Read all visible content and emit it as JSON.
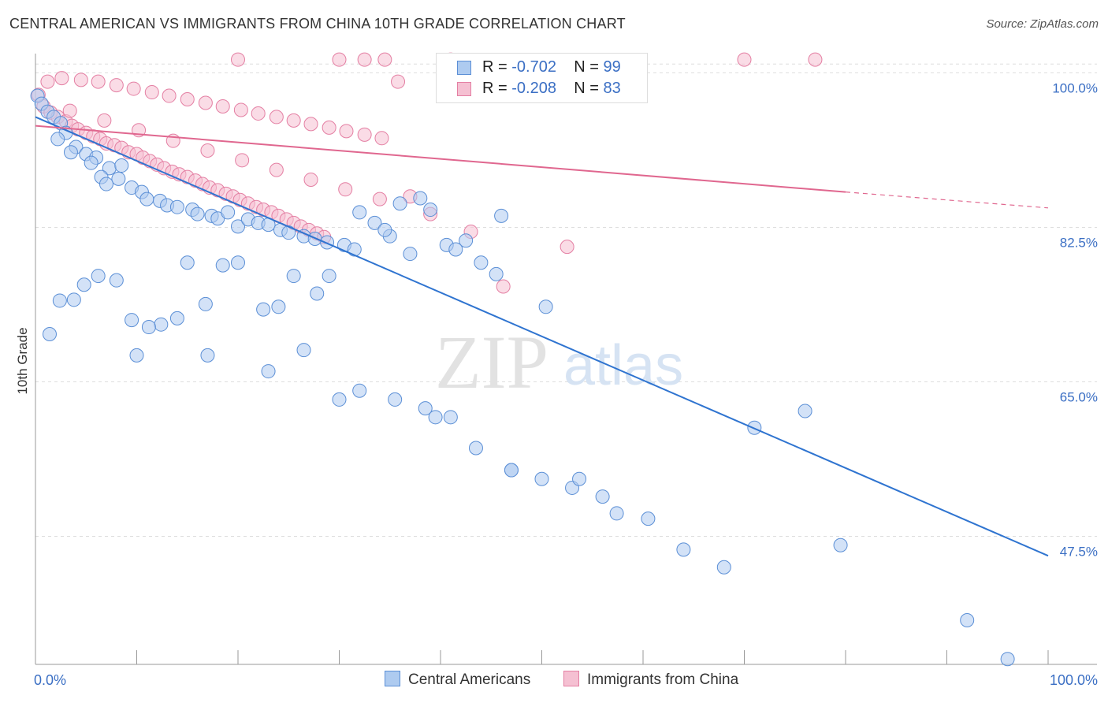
{
  "title": "CENTRAL AMERICAN VS IMMIGRANTS FROM CHINA 10TH GRADE CORRELATION CHART",
  "source": "Source: ZipAtlas.com",
  "watermark": {
    "zip": "ZIP",
    "atlas": "atlas"
  },
  "legend_stats": {
    "rows": [
      {
        "r_label": "R =",
        "r_value": "-0.702",
        "n_label": "N =",
        "n_value": "99"
      },
      {
        "r_label": "R =",
        "r_value": "-0.208",
        "n_label": "N =",
        "n_value": "83"
      }
    ]
  },
  "colors": {
    "blue_fill": "#aecbf0",
    "blue_stroke": "#5b8fd6",
    "blue_line": "#2f74d0",
    "pink_fill": "#f5c0d2",
    "pink_stroke": "#e47fa3",
    "pink_line": "#e0678f",
    "grid": "#dddddd",
    "axis_text": "#3b6fc4"
  },
  "chart_data": {
    "type": "scatter",
    "title": "CENTRAL AMERICAN VS IMMIGRANTS FROM CHINA 10TH GRADE CORRELATION CHART",
    "xlabel": "",
    "ylabel": "10th Grade",
    "xlim": [
      0,
      100
    ],
    "ylim": [
      33,
      102
    ],
    "x_tick_labels": [
      "0.0%",
      "100.0%"
    ],
    "y_ticks": [
      100.0,
      82.5,
      65.0,
      47.5
    ],
    "y_tick_labels": [
      "100.0%",
      "82.5%",
      "65.0%",
      "47.5%"
    ],
    "legend": [
      "Central Americans",
      "Immigrants from China"
    ],
    "series": [
      {
        "name": "Central Americans",
        "trend": {
          "x": [
            0,
            100
          ],
          "y": [
            95.0,
            45.3
          ]
        },
        "points": [
          [
            0.2,
            97.4
          ],
          [
            0.6,
            96.5
          ],
          [
            1.2,
            95.6
          ],
          [
            1.8,
            95.0
          ],
          [
            2.5,
            94.3
          ],
          [
            3.0,
            93.2
          ],
          [
            2.2,
            92.5
          ],
          [
            4.0,
            91.6
          ],
          [
            3.5,
            91.0
          ],
          [
            5.0,
            90.8
          ],
          [
            6.0,
            90.4
          ],
          [
            5.5,
            89.8
          ],
          [
            7.3,
            89.2
          ],
          [
            8.5,
            89.5
          ],
          [
            8.2,
            88.0
          ],
          [
            6.5,
            88.2
          ],
          [
            7.0,
            87.4
          ],
          [
            9.5,
            87.0
          ],
          [
            10.5,
            86.5
          ],
          [
            11.0,
            85.7
          ],
          [
            12.3,
            85.5
          ],
          [
            13.0,
            85.0
          ],
          [
            14.0,
            84.8
          ],
          [
            15.5,
            84.5
          ],
          [
            16.0,
            84.0
          ],
          [
            17.4,
            83.8
          ],
          [
            18.0,
            83.5
          ],
          [
            19.0,
            84.2
          ],
          [
            20.0,
            82.6
          ],
          [
            21.0,
            83.4
          ],
          [
            22.0,
            83.0
          ],
          [
            23.0,
            82.8
          ],
          [
            24.2,
            82.2
          ],
          [
            25.0,
            81.9
          ],
          [
            26.5,
            81.5
          ],
          [
            27.6,
            81.2
          ],
          [
            28.8,
            80.8
          ],
          [
            30.5,
            80.5
          ],
          [
            32.0,
            84.2
          ],
          [
            33.5,
            83.0
          ],
          [
            35.0,
            81.5
          ],
          [
            36.0,
            85.2
          ],
          [
            38.0,
            85.8
          ],
          [
            39.0,
            84.5
          ],
          [
            40.6,
            80.5
          ],
          [
            42.5,
            81.0
          ],
          [
            44.0,
            78.5
          ],
          [
            45.5,
            77.2
          ],
          [
            46.0,
            83.8
          ],
          [
            41.5,
            80.0
          ],
          [
            37.0,
            79.5
          ],
          [
            34.5,
            82.2
          ],
          [
            31.5,
            80.0
          ],
          [
            29.0,
            77.0
          ],
          [
            27.8,
            75.0
          ],
          [
            25.5,
            77.0
          ],
          [
            24.0,
            73.5
          ],
          [
            22.5,
            73.2
          ],
          [
            20.0,
            78.5
          ],
          [
            18.5,
            78.2
          ],
          [
            15.0,
            78.5
          ],
          [
            16.8,
            73.8
          ],
          [
            14.0,
            72.2
          ],
          [
            12.4,
            71.5
          ],
          [
            11.2,
            71.2
          ],
          [
            9.5,
            72.0
          ],
          [
            8.0,
            76.5
          ],
          [
            6.2,
            77.0
          ],
          [
            4.8,
            76.0
          ],
          [
            3.8,
            74.3
          ],
          [
            2.4,
            74.2
          ],
          [
            1.4,
            70.4
          ],
          [
            10.0,
            68.0
          ],
          [
            17.0,
            68.0
          ],
          [
            23.0,
            66.2
          ],
          [
            26.5,
            68.6
          ],
          [
            30.0,
            63.0
          ],
          [
            32.0,
            64.0
          ],
          [
            35.5,
            63.0
          ],
          [
            38.5,
            62.0
          ],
          [
            39.5,
            61.0
          ],
          [
            41.0,
            61.0
          ],
          [
            43.5,
            57.5
          ],
          [
            47.0,
            55.0
          ],
          [
            50.0,
            54.0
          ],
          [
            53.0,
            53.0
          ],
          [
            56.0,
            52.0
          ],
          [
            60.5,
            49.5
          ],
          [
            64.0,
            46.0
          ],
          [
            68.0,
            44.0
          ],
          [
            71.0,
            59.8
          ],
          [
            76.0,
            61.7
          ],
          [
            50.4,
            73.5
          ],
          [
            53.7,
            54.0
          ],
          [
            57.4,
            50.1
          ],
          [
            47.0,
            55.0
          ],
          [
            79.5,
            46.5
          ],
          [
            92.0,
            38.0
          ],
          [
            96.0,
            33.6
          ]
        ]
      },
      {
        "name": "Immigrants from China",
        "trend": {
          "x": [
            0,
            80
          ],
          "y": [
            94.0,
            86.5
          ],
          "dashed_to": [
            100,
            84.7
          ]
        },
        "points": [
          [
            0.3,
            97.5
          ],
          [
            0.8,
            96.2
          ],
          [
            1.5,
            95.5
          ],
          [
            2.2,
            95.0
          ],
          [
            3.0,
            94.5
          ],
          [
            3.6,
            94.0
          ],
          [
            4.2,
            93.6
          ],
          [
            5.0,
            93.2
          ],
          [
            5.7,
            92.8
          ],
          [
            6.4,
            92.5
          ],
          [
            7.0,
            92.0
          ],
          [
            7.8,
            91.8
          ],
          [
            8.5,
            91.5
          ],
          [
            9.2,
            91.0
          ],
          [
            10.0,
            90.8
          ],
          [
            10.6,
            90.4
          ],
          [
            11.3,
            90.0
          ],
          [
            12.0,
            89.6
          ],
          [
            12.7,
            89.2
          ],
          [
            13.5,
            88.8
          ],
          [
            14.2,
            88.5
          ],
          [
            15.0,
            88.2
          ],
          [
            15.8,
            87.8
          ],
          [
            16.5,
            87.4
          ],
          [
            17.2,
            87.0
          ],
          [
            18.0,
            86.7
          ],
          [
            18.8,
            86.3
          ],
          [
            19.5,
            86.0
          ],
          [
            20.2,
            85.6
          ],
          [
            21.0,
            85.2
          ],
          [
            21.8,
            84.8
          ],
          [
            22.5,
            84.5
          ],
          [
            23.3,
            84.2
          ],
          [
            24.0,
            83.8
          ],
          [
            24.8,
            83.4
          ],
          [
            25.5,
            83.0
          ],
          [
            26.2,
            82.6
          ],
          [
            27.0,
            82.2
          ],
          [
            27.8,
            81.8
          ],
          [
            28.5,
            81.4
          ],
          [
            1.2,
            99.0
          ],
          [
            2.6,
            99.4
          ],
          [
            4.5,
            99.2
          ],
          [
            6.2,
            99.0
          ],
          [
            8.0,
            98.6
          ],
          [
            9.7,
            98.2
          ],
          [
            11.5,
            97.8
          ],
          [
            13.2,
            97.4
          ],
          [
            15.0,
            97.0
          ],
          [
            16.8,
            96.6
          ],
          [
            18.5,
            96.2
          ],
          [
            20.3,
            95.8
          ],
          [
            22.0,
            95.4
          ],
          [
            23.8,
            95.0
          ],
          [
            25.5,
            94.6
          ],
          [
            27.2,
            94.2
          ],
          [
            29.0,
            93.8
          ],
          [
            30.7,
            93.4
          ],
          [
            32.5,
            93.0
          ],
          [
            34.2,
            92.6
          ],
          [
            3.4,
            95.7
          ],
          [
            6.8,
            94.6
          ],
          [
            10.2,
            93.5
          ],
          [
            13.6,
            92.3
          ],
          [
            17.0,
            91.2
          ],
          [
            20.4,
            90.1
          ],
          [
            23.8,
            89.0
          ],
          [
            27.2,
            87.9
          ],
          [
            30.6,
            86.8
          ],
          [
            34.0,
            85.7
          ],
          [
            20.0,
            101.5
          ],
          [
            30.0,
            101.5
          ],
          [
            32.5,
            101.5
          ],
          [
            34.5,
            101.5
          ],
          [
            35.8,
            99.0
          ],
          [
            41.0,
            101.5
          ],
          [
            70.0,
            101.5
          ],
          [
            77.0,
            101.5
          ],
          [
            37.0,
            86.0
          ],
          [
            39.0,
            84.0
          ],
          [
            43.0,
            82.0
          ],
          [
            46.2,
            75.8
          ],
          [
            52.5,
            80.3
          ]
        ]
      }
    ]
  },
  "bottom_legend": [
    {
      "label": "Central Americans"
    },
    {
      "label": "Immigrants from China"
    }
  ]
}
